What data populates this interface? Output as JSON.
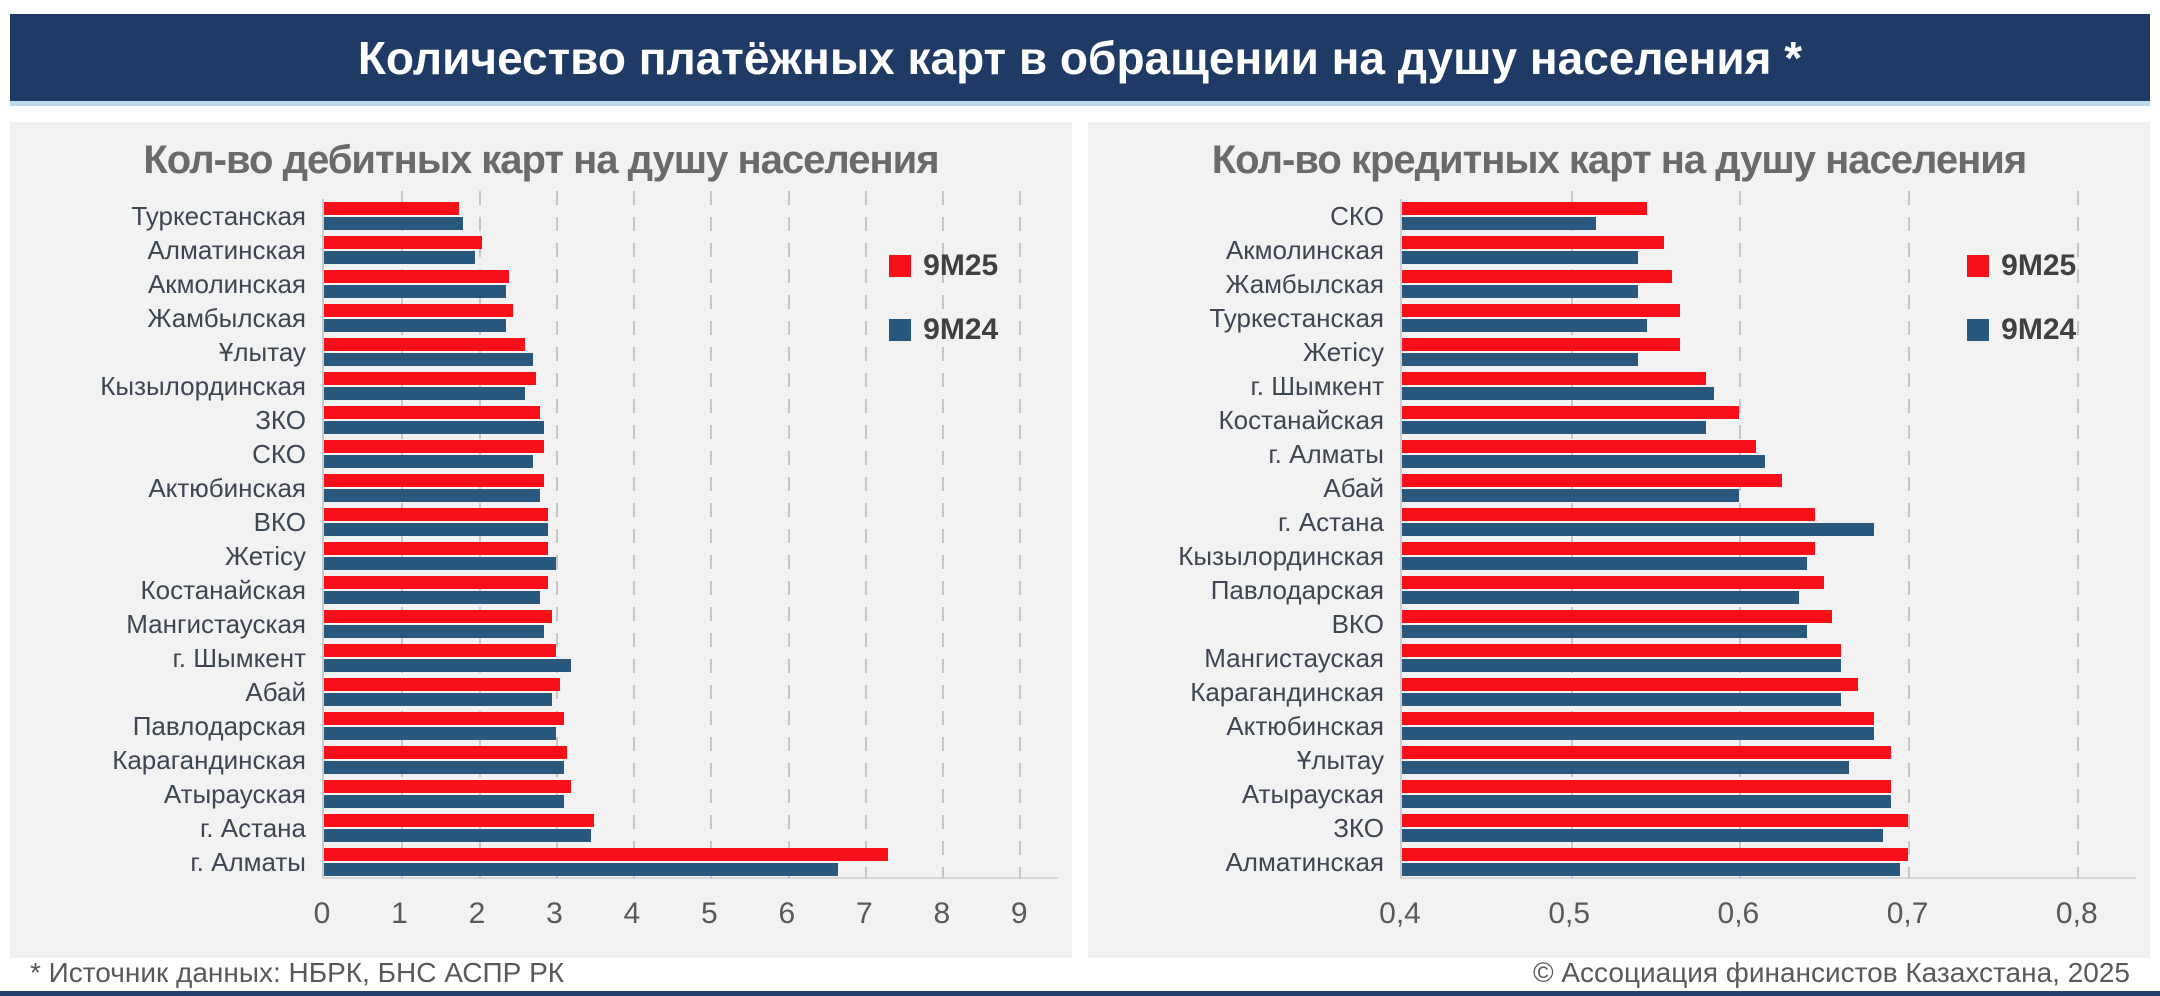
{
  "header": {
    "title": "Количество платёжных карт в обращении на душу населения *"
  },
  "footer": {
    "source": "* Источник данных: НБРК, БНС АСПР РК",
    "copyright": "© Ассоциация финансистов Казахстана, 2025"
  },
  "colors": {
    "banner": "#1F3A64",
    "panel_bg": "#F2F2F2",
    "series_red": "#F7101A",
    "series_blue": "#29587C"
  },
  "legend": {
    "series1": "9М25",
    "series2": "9М24"
  },
  "chart_data": [
    {
      "type": "bar",
      "orientation": "horizontal",
      "title": "Кол-во дебитных карт на душу населения",
      "xlabel": "",
      "ylabel": "",
      "xlim": [
        0,
        9.5
      ],
      "grid": "dashed-vertical",
      "legend_position": "top-right",
      "categories": [
        "Туркестанская",
        "Алматинская",
        "Акмолинская",
        "Жамбылская",
        "Ұлытау",
        "Кызылординская",
        "ЗКО",
        "СКО",
        "Актюбинская",
        "ВКО",
        "Жетісу",
        "Костанайская",
        "Мангистауская",
        "г. Шымкент",
        "Абай",
        "Павлодарская",
        "Карагандинская",
        "Атырауская",
        "г. Астана",
        "г. Алматы"
      ],
      "series": [
        {
          "name": "9М25",
          "color": "#F7101A",
          "values": [
            1.75,
            2.05,
            2.4,
            2.45,
            2.6,
            2.75,
            2.8,
            2.85,
            2.85,
            2.9,
            2.9,
            2.9,
            2.95,
            3.0,
            3.05,
            3.1,
            3.15,
            3.2,
            3.5,
            7.3
          ]
        },
        {
          "name": "9М24",
          "color": "#29587C",
          "values": [
            1.8,
            1.95,
            2.35,
            2.35,
            2.7,
            2.6,
            2.85,
            2.7,
            2.8,
            2.9,
            3.0,
            2.8,
            2.85,
            3.2,
            2.95,
            3.0,
            3.1,
            3.1,
            3.45,
            6.65
          ]
        }
      ],
      "xticks": [
        0,
        1,
        2,
        3,
        4,
        5,
        6,
        7,
        8,
        9
      ],
      "xtick_labels": [
        "0",
        "1",
        "2",
        "3",
        "4",
        "5",
        "6",
        "7",
        "8",
        "9"
      ],
      "gridlines": [
        1,
        2,
        3,
        4,
        5,
        6,
        7,
        8,
        9
      ]
    },
    {
      "type": "bar",
      "orientation": "horizontal",
      "title": "Кол-во кредитных карт на душу населения",
      "xlabel": "",
      "ylabel": "",
      "xlim": [
        0.4,
        0.835
      ],
      "grid": "dashed-vertical",
      "legend_position": "top-right",
      "categories": [
        "СКО",
        "Акмолинская",
        "Жамбылская",
        "Туркестанская",
        "Жетісу",
        "г. Шымкент",
        "Костанайская",
        "г. Алматы",
        "Абай",
        "г. Астана",
        "Кызылординская",
        "Павлодарская",
        "ВКО",
        "Мангистауская",
        "Карагандинская",
        "Актюбинская",
        "Ұлытау",
        "Атырауская",
        "ЗКО",
        "Алматинская"
      ],
      "series": [
        {
          "name": "9М25",
          "color": "#F7101A",
          "values": [
            0.545,
            0.555,
            0.56,
            0.565,
            0.565,
            0.58,
            0.6,
            0.61,
            0.625,
            0.645,
            0.645,
            0.65,
            0.655,
            0.66,
            0.67,
            0.68,
            0.69,
            0.69,
            0.7,
            0.7
          ]
        },
        {
          "name": "9М24",
          "color": "#29587C",
          "values": [
            0.515,
            0.54,
            0.54,
            0.545,
            0.54,
            0.585,
            0.58,
            0.615,
            0.6,
            0.68,
            0.64,
            0.635,
            0.64,
            0.66,
            0.66,
            0.68,
            0.665,
            0.69,
            0.685,
            0.695
          ]
        }
      ],
      "xticks": [
        0.4,
        0.5,
        0.6,
        0.7,
        0.8
      ],
      "xtick_labels": [
        "0,4",
        "0,5",
        "0,6",
        "0,7",
        "0,8"
      ],
      "gridlines": [
        0.5,
        0.6,
        0.7,
        0.8
      ]
    }
  ]
}
